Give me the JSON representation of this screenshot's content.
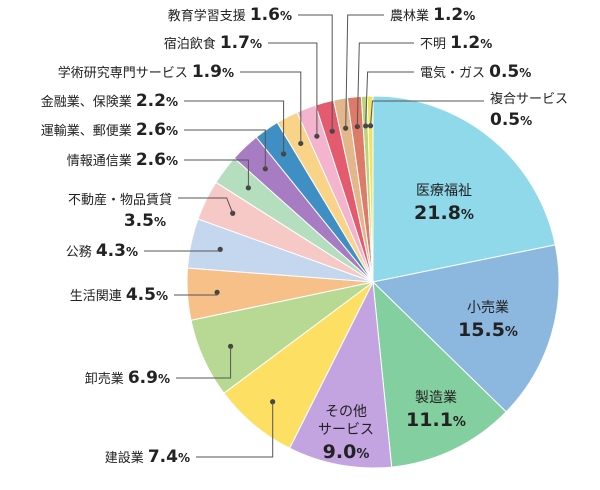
{
  "chart_data": {
    "type": "pie",
    "unit": "%",
    "slices": [
      {
        "label": "医療福祉",
        "value": 21.8,
        "color": "#8fd9ea"
      },
      {
        "label": "小売業",
        "value": 15.5,
        "color": "#8cb8e0"
      },
      {
        "label": "製造業",
        "value": 11.1,
        "color": "#84cf9f"
      },
      {
        "label": "その他サービス",
        "label_lines": [
          "その他",
          "サービス"
        ],
        "value": 9.0,
        "color": "#c3a4e1"
      },
      {
        "label": "建設業",
        "value": 7.4,
        "color": "#fde063"
      },
      {
        "label": "卸売業",
        "value": 6.9,
        "color": "#b7d994"
      },
      {
        "label": "生活関連",
        "value": 4.5,
        "color": "#f6c088"
      },
      {
        "label": "公務",
        "value": 4.3,
        "color": "#c5d7ee"
      },
      {
        "label": "不動産・物品賃貸",
        "value": 3.5,
        "color": "#f6c8c6"
      },
      {
        "label": "情報通信業",
        "value": 2.6,
        "color": "#b5debf"
      },
      {
        "label": "運輸業、郵便業",
        "value": 2.6,
        "color": "#a77cc2"
      },
      {
        "label": "金融業、保険業",
        "value": 2.2,
        "color": "#3f8ec4"
      },
      {
        "label": "学術研究専門サービス",
        "value": 1.9,
        "color": "#f9d387"
      },
      {
        "label": "宿泊飲食",
        "value": 1.7,
        "color": "#f4b4ce"
      },
      {
        "label": "教育学習支援",
        "value": 1.6,
        "color": "#e45a6e"
      },
      {
        "label": "農林業",
        "value": 1.2,
        "color": "#e3b78b"
      },
      {
        "label": "不明",
        "value": 1.2,
        "color": "#dd7a68"
      },
      {
        "label": "電気・ガス",
        "value": 0.5,
        "color": "#bcd37a"
      },
      {
        "label": "複合サービス",
        "value": 0.5,
        "color": "#f0e45f"
      }
    ]
  }
}
